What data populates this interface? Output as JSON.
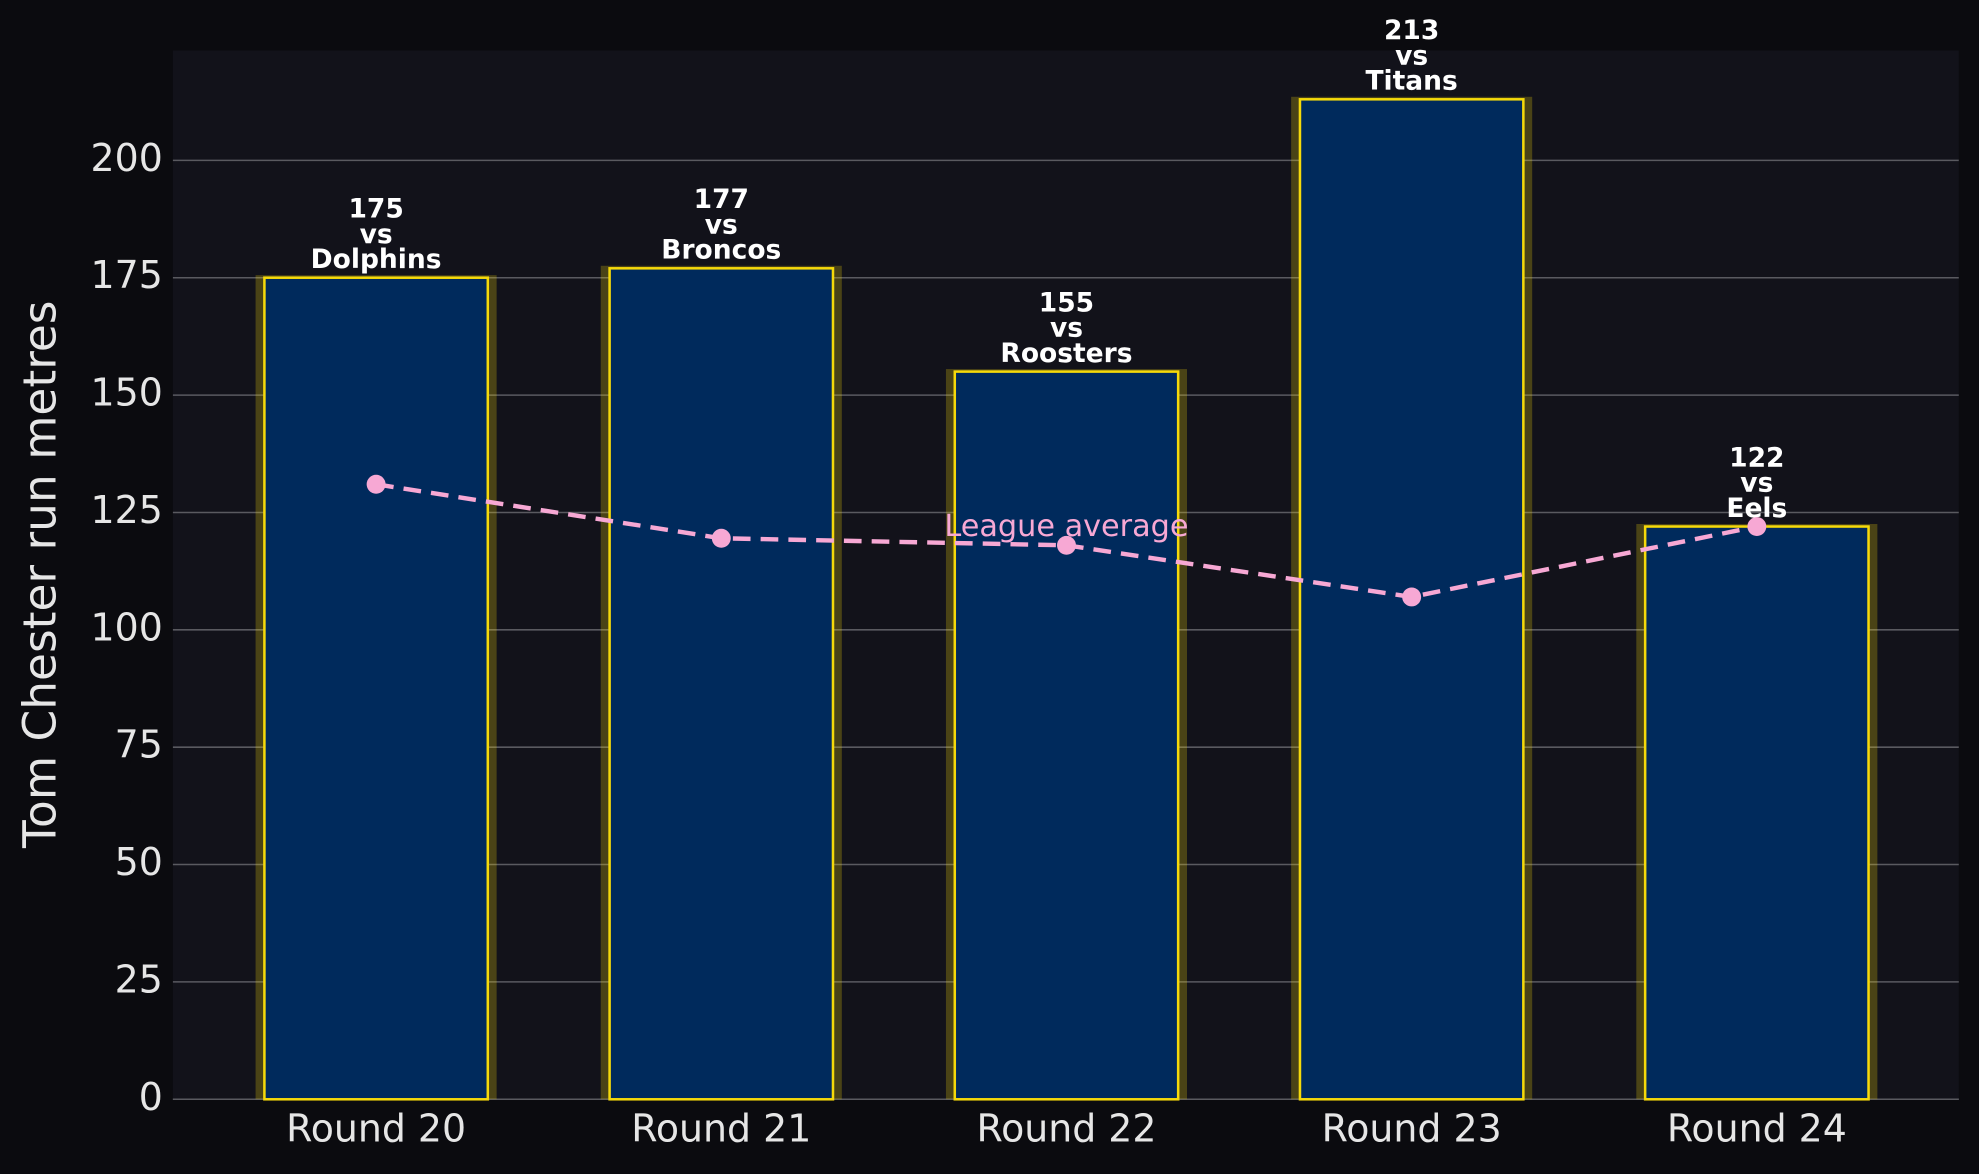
{
  "chart_data": {
    "type": "bar",
    "categories": [
      "Round 20",
      "Round 21",
      "Round 22",
      "Round 23",
      "Round 24"
    ],
    "series": [
      {
        "type": "bar",
        "color": "#002a5c",
        "edge_color": "#f5d90a",
        "values": [
          175,
          177,
          155,
          213,
          122
        ],
        "value_labels": [
          "175\nvs\nDolphins",
          "177\nvs\nBroncos",
          "155\nvs\nRoosters",
          "213\nvs\nTitans",
          "122\nvs\nEels"
        ]
      },
      {
        "type": "line",
        "name": "League average",
        "color": "#f7a8d4",
        "dashed": true,
        "values": [
          131,
          119.5,
          118,
          107,
          122
        ]
      }
    ],
    "y_label": "Tom Chester run metres",
    "ylim": [
      0,
      223.4
    ],
    "yticks": [
      0,
      25,
      50,
      75,
      100,
      125,
      150,
      175,
      200
    ],
    "grid": true
  }
}
